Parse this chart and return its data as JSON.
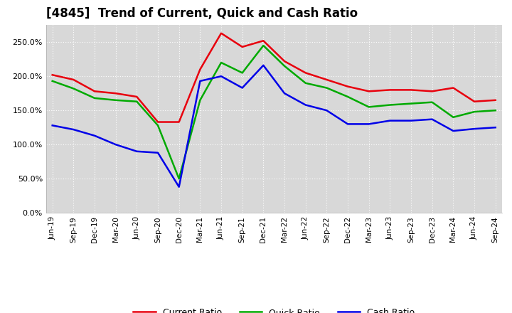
{
  "title": "[4845]  Trend of Current, Quick and Cash Ratio",
  "labels": [
    "Jun-19",
    "Sep-19",
    "Dec-19",
    "Mar-20",
    "Jun-20",
    "Sep-20",
    "Dec-20",
    "Mar-21",
    "Jun-21",
    "Sep-21",
    "Dec-21",
    "Mar-22",
    "Jun-22",
    "Sep-22",
    "Dec-22",
    "Mar-23",
    "Jun-23",
    "Sep-23",
    "Dec-23",
    "Mar-24",
    "Jun-24",
    "Sep-24"
  ],
  "current_ratio": [
    202,
    195,
    178,
    175,
    170,
    133,
    133,
    210,
    263,
    243,
    252,
    222,
    205,
    195,
    185,
    178,
    180,
    180,
    178,
    183,
    163,
    165
  ],
  "quick_ratio": [
    193,
    182,
    168,
    165,
    163,
    128,
    50,
    165,
    220,
    205,
    245,
    215,
    190,
    183,
    170,
    155,
    158,
    160,
    162,
    140,
    148,
    150
  ],
  "cash_ratio": [
    128,
    122,
    113,
    100,
    90,
    88,
    38,
    193,
    200,
    183,
    216,
    175,
    158,
    150,
    130,
    130,
    135,
    135,
    137,
    120,
    123,
    125
  ],
  "current_color": "#e8000d",
  "quick_color": "#00aa00",
  "cash_color": "#0000e8",
  "line_width": 1.8,
  "ylim": [
    0,
    275
  ],
  "yticks": [
    0,
    50,
    100,
    150,
    200,
    250
  ],
  "background_color": "#ffffff",
  "plot_bg_color": "#d8d8d8",
  "grid_color": "#ffffff",
  "title_fontsize": 12,
  "legend_labels": [
    "Current Ratio",
    "Quick Ratio",
    "Cash Ratio"
  ]
}
